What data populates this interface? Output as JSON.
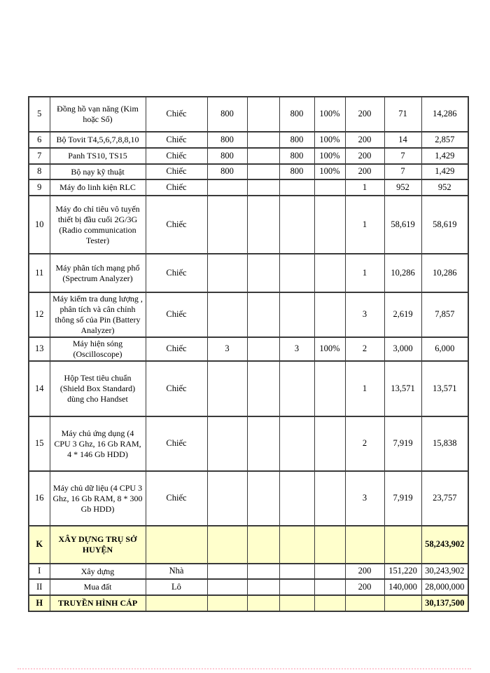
{
  "colors": {
    "highlight": "#ffffcc",
    "border": "#3a3a3a",
    "page_break_line": "#ffc9d4"
  },
  "page": {
    "page_break_line": "dotted page-break indicator"
  },
  "table": {
    "rows": [
      {
        "no": "5",
        "name": "Đồng hồ vạn năng (Kim hoặc Số)",
        "unit": "Chiếc",
        "qty_a": "800",
        "blank": "",
        "qty_b": "800",
        "percent": "100%",
        "qty": "200",
        "unit_price": "71",
        "amount": "14,286",
        "highlight": false
      },
      {
        "no": "6",
        "name": "Bộ Tovit T4,5,6,7,8,8,10",
        "unit": "Chiếc",
        "qty_a": "800",
        "blank": "",
        "qty_b": "800",
        "percent": "100%",
        "qty": "200",
        "unit_price": "14",
        "amount": "2,857",
        "highlight": false
      },
      {
        "no": "7",
        "name": "Panh TS10, TS15",
        "unit": "Chiếc",
        "qty_a": "800",
        "blank": "",
        "qty_b": "800",
        "percent": "100%",
        "qty": "200",
        "unit_price": "7",
        "amount": "1,429",
        "highlight": false
      },
      {
        "no": "8",
        "name": "Bộ nạy kỹ thuật",
        "unit": "Chiếc",
        "qty_a": "800",
        "blank": "",
        "qty_b": "800",
        "percent": "100%",
        "qty": "200",
        "unit_price": "7",
        "amount": "1,429",
        "highlight": false
      },
      {
        "no": "9",
        "name": "Máy đo linh kiện RLC",
        "unit": "Chiếc",
        "qty_a": "",
        "blank": "",
        "qty_b": "",
        "percent": "",
        "qty": "1",
        "unit_price": "952",
        "amount": "952",
        "highlight": false
      },
      {
        "no": "10",
        "name": "Máy đo chỉ tiêu vô tuyến thiết bị đầu cuối 2G/3G (Radio communication Tester)",
        "unit": "Chiếc",
        "qty_a": "",
        "blank": "",
        "qty_b": "",
        "percent": "",
        "qty": "1",
        "unit_price": "58,619",
        "amount": "58,619",
        "highlight": false
      },
      {
        "no": "11",
        "name": "Máy phân tích mạng phổ (Spectrum Analyzer)",
        "unit": "Chiếc",
        "qty_a": "",
        "blank": "",
        "qty_b": "",
        "percent": "",
        "qty": "1",
        "unit_price": "10,286",
        "amount": "10,286",
        "highlight": false
      },
      {
        "no": "12",
        "name": "Máy kiểm tra dung lượng , phân tích và cân chỉnh thông số của Pin (Battery Analyzer)",
        "unit": "Chiếc",
        "qty_a": "",
        "blank": "",
        "qty_b": "",
        "percent": "",
        "qty": "3",
        "unit_price": "2,619",
        "amount": "7,857",
        "highlight": false
      },
      {
        "no": "13",
        "name": "Máy hiện sóng (Oscilloscope)",
        "unit": "Chiếc",
        "qty_a": "3",
        "blank": "",
        "qty_b": "3",
        "percent": "100%",
        "qty": "2",
        "unit_price": "3,000",
        "amount": "6,000",
        "highlight": false
      },
      {
        "no": "14",
        "name": "Hộp Test tiêu chuẩn (Shield Box Standard) dùng cho Handset",
        "unit": "Chiếc",
        "qty_a": "",
        "blank": "",
        "qty_b": "",
        "percent": "",
        "qty": "1",
        "unit_price": "13,571",
        "amount": "13,571",
        "highlight": false
      },
      {
        "no": "15",
        "name": "Máy chủ ứng dụng (4 CPU 3 Ghz, 16 Gb RAM, 4 * 146 Gb HDD)",
        "unit": "Chiếc",
        "qty_a": "",
        "blank": "",
        "qty_b": "",
        "percent": "",
        "qty": "2",
        "unit_price": "7,919",
        "amount": "15,838",
        "highlight": false
      },
      {
        "no": "16",
        "name": "Máy chủ dữ liệu (4 CPU 3 Ghz, 16 Gb RAM, 8 * 300 Gb HDD)",
        "unit": "Chiếc",
        "qty_a": "",
        "blank": "",
        "qty_b": "",
        "percent": "",
        "qty": "3",
        "unit_price": "7,919",
        "amount": "23,757",
        "highlight": false
      },
      {
        "no": "K",
        "name": "XÂY DỰNG TRỤ SỞ HUYỆN",
        "unit": "",
        "qty_a": "",
        "blank": "",
        "qty_b": "",
        "percent": "",
        "qty": "",
        "unit_price": "",
        "amount": "58,243,902",
        "highlight": true
      },
      {
        "no": "I",
        "name": "Xây dựng",
        "unit": "Nhà",
        "qty_a": "",
        "blank": "",
        "qty_b": "",
        "percent": "",
        "qty": "200",
        "unit_price": "151,220",
        "amount": "30,243,902",
        "highlight": false
      },
      {
        "no": "II",
        "name": "Mua đất",
        "unit": "Lô",
        "qty_a": "",
        "blank": "",
        "qty_b": "",
        "percent": "",
        "qty": "200",
        "unit_price": "140,000",
        "amount": "28,000,000",
        "highlight": false
      },
      {
        "no": "H",
        "name": "TRUYỀN HÌNH CÁP",
        "unit": "",
        "qty_a": "",
        "blank": "",
        "qty_b": "",
        "percent": "",
        "qty": "",
        "unit_price": "",
        "amount": "30,137,500",
        "highlight": true
      }
    ]
  }
}
